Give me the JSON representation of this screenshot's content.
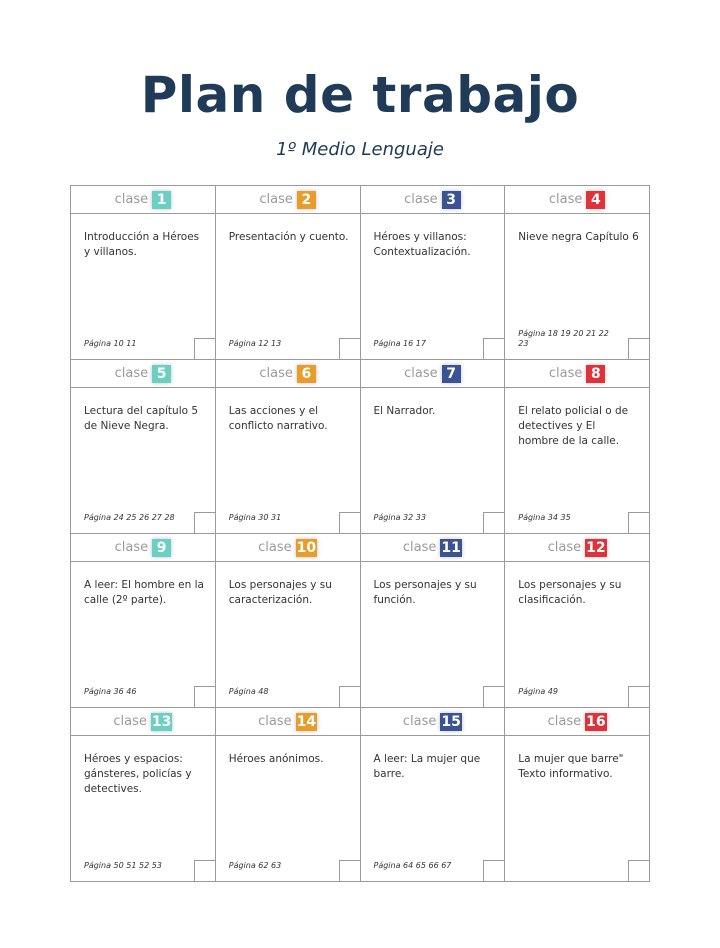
{
  "title": "Plan de trabajo",
  "subtitle": "1º Medio Lenguaje",
  "colors": {
    "title": "#1f3b57",
    "teal": "#6ccfc4",
    "orange": "#e89c2a",
    "navy": "#3b5393",
    "red": "#e0323a"
  },
  "clase_label": "clase",
  "classes": [
    {
      "num": "1",
      "color": "#6ccfc4",
      "desc": "Introducción a Héroes y villanos.",
      "pages": "Página 10 11"
    },
    {
      "num": "2",
      "color": "#e89c2a",
      "desc": "Presentación y cuento.",
      "pages": "Página 12 13"
    },
    {
      "num": "3",
      "color": "#3b5393",
      "desc": "Héroes y villanos: Contextualización.",
      "pages": "Página 16 17"
    },
    {
      "num": "4",
      "color": "#e0323a",
      "desc": "Nieve negra Capítulo 6",
      "pages": "Página 18 19 20 21 22 23"
    },
    {
      "num": "5",
      "color": "#6ccfc4",
      "desc": "Lectura del capítulo 5 de Nieve Negra.",
      "pages": "Página 24 25 26 27 28"
    },
    {
      "num": "6",
      "color": "#e89c2a",
      "desc": "Las acciones y el conflicto narrativo.",
      "pages": "Página 30 31"
    },
    {
      "num": "7",
      "color": "#3b5393",
      "desc": "El Narrador.",
      "pages": "Página 32 33"
    },
    {
      "num": "8",
      "color": "#e0323a",
      "desc": "El relato policial o de detectives y El hombre de la calle.",
      "pages": "Página 34 35"
    },
    {
      "num": "9",
      "color": "#6ccfc4",
      "desc": "A leer: El hombre en la calle (2º parte).",
      "pages": "Página 36 46"
    },
    {
      "num": "10",
      "color": "#e89c2a",
      "desc": "Los personajes y su caracterización.",
      "pages": "Página 48"
    },
    {
      "num": "11",
      "color": "#3b5393",
      "desc": "Los personajes y su función.",
      "pages": ""
    },
    {
      "num": "12",
      "color": "#e0323a",
      "desc": "Los personajes y su clasificación.",
      "pages": "Página 49"
    },
    {
      "num": "13",
      "color": "#6ccfc4",
      "desc": "Héroes y espacios: gánsteres, policías y detectives.",
      "pages": "Página 50 51 52 53"
    },
    {
      "num": "14",
      "color": "#e89c2a",
      "desc": "Héroes anónimos.",
      "pages": "Página 62 63"
    },
    {
      "num": "15",
      "color": "#3b5393",
      "desc": "A leer: La mujer que barre.",
      "pages": "Página 64 65 66 67"
    },
    {
      "num": "16",
      "color": "#e0323a",
      "desc": "La mujer que barre\" Texto informativo.",
      "pages": ""
    }
  ]
}
